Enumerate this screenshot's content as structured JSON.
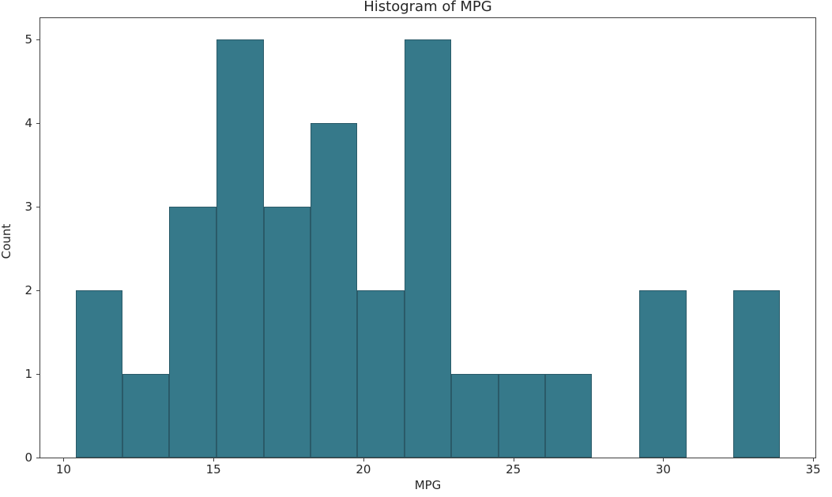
{
  "chart_data": {
    "type": "bar",
    "subtype": "histogram",
    "title": "Histogram of MPG",
    "xlabel": "MPG",
    "ylabel": "Count",
    "bin_edges": [
      10.4,
      11.97,
      13.53,
      15.1,
      16.67,
      18.23,
      19.8,
      21.37,
      22.93,
      24.5,
      26.07,
      27.63,
      29.2,
      30.77,
      32.33,
      33.9
    ],
    "counts": [
      2,
      1,
      3,
      5,
      3,
      4,
      2,
      5,
      1,
      1,
      1,
      0,
      2,
      0,
      2
    ],
    "xticks": [
      10,
      15,
      20,
      25,
      30,
      35
    ],
    "yticks": [
      0,
      1,
      2,
      3,
      4,
      5
    ],
    "xlim": [
      9.225,
      35.075
    ],
    "ylim": [
      0,
      5.25
    ],
    "grid": false,
    "legend": null,
    "colors": {
      "bar_fill": "#36798a",
      "bar_edge": "#2a5a68",
      "axis": "#3f3f3f",
      "text": "#262626",
      "background": "#ffffff"
    }
  }
}
